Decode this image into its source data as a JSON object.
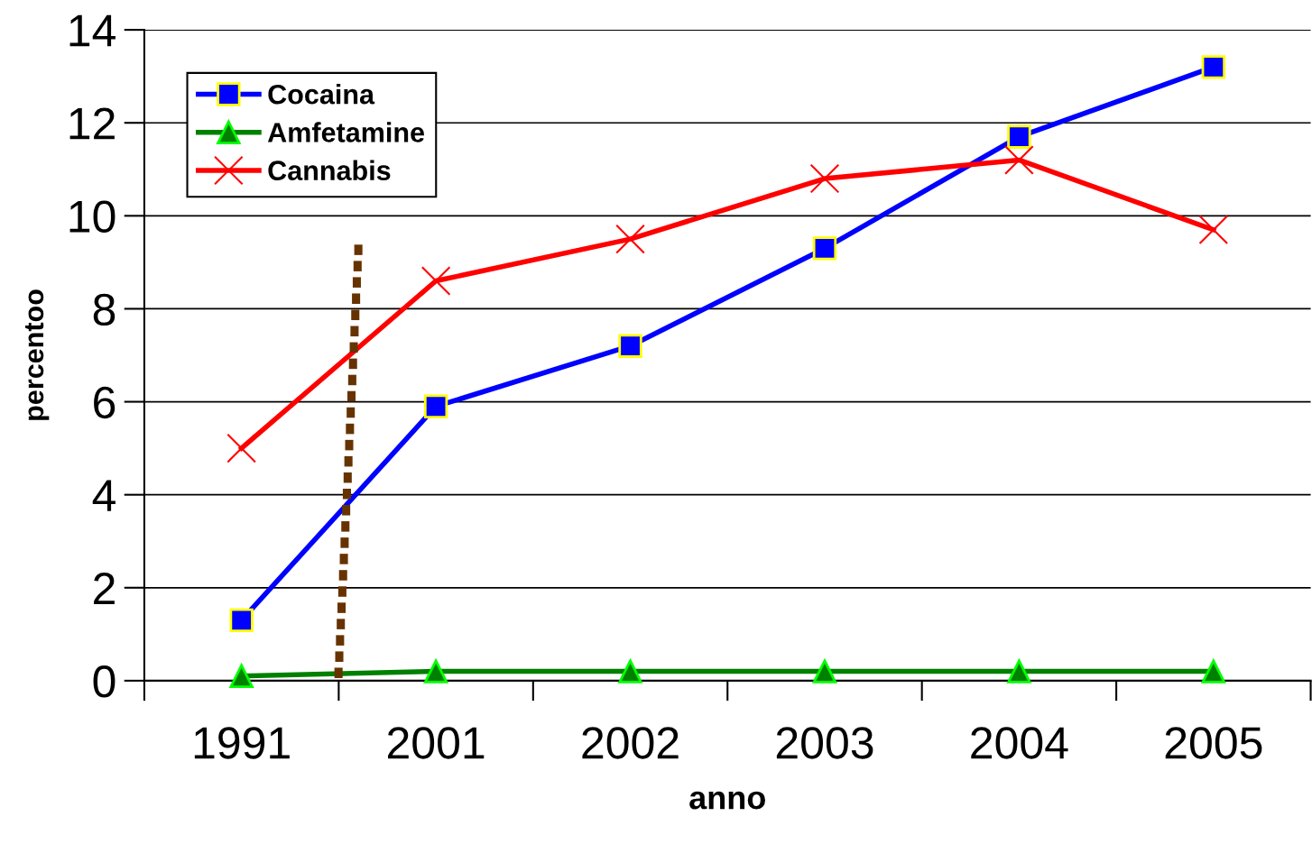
{
  "chart_data": {
    "type": "line",
    "xlabel": "anno",
    "ylabel": "percentoo",
    "categories": [
      "1991",
      "2001",
      "2002",
      "2003",
      "2004",
      "2005"
    ],
    "series": [
      {
        "name": "Cocaina",
        "color": "#0000ff",
        "marker": "square",
        "values": [
          1.3,
          5.9,
          7.2,
          9.3,
          11.7,
          13.2
        ]
      },
      {
        "name": "Amfetamine",
        "color": "#008000",
        "marker": "triangle",
        "values": [
          0.1,
          0.2,
          0.2,
          0.2,
          0.2,
          0.2
        ]
      },
      {
        "name": "Cannabis",
        "color": "#ff0000",
        "marker": "cross",
        "values": [
          5.0,
          8.6,
          9.5,
          10.8,
          11.2,
          9.7
        ]
      }
    ],
    "ylim": [
      0,
      14
    ],
    "yticks": [
      0,
      2,
      4,
      6,
      8,
      10,
      12,
      14
    ],
    "grid": "y",
    "legend": "top left",
    "line_style": "solid"
  }
}
